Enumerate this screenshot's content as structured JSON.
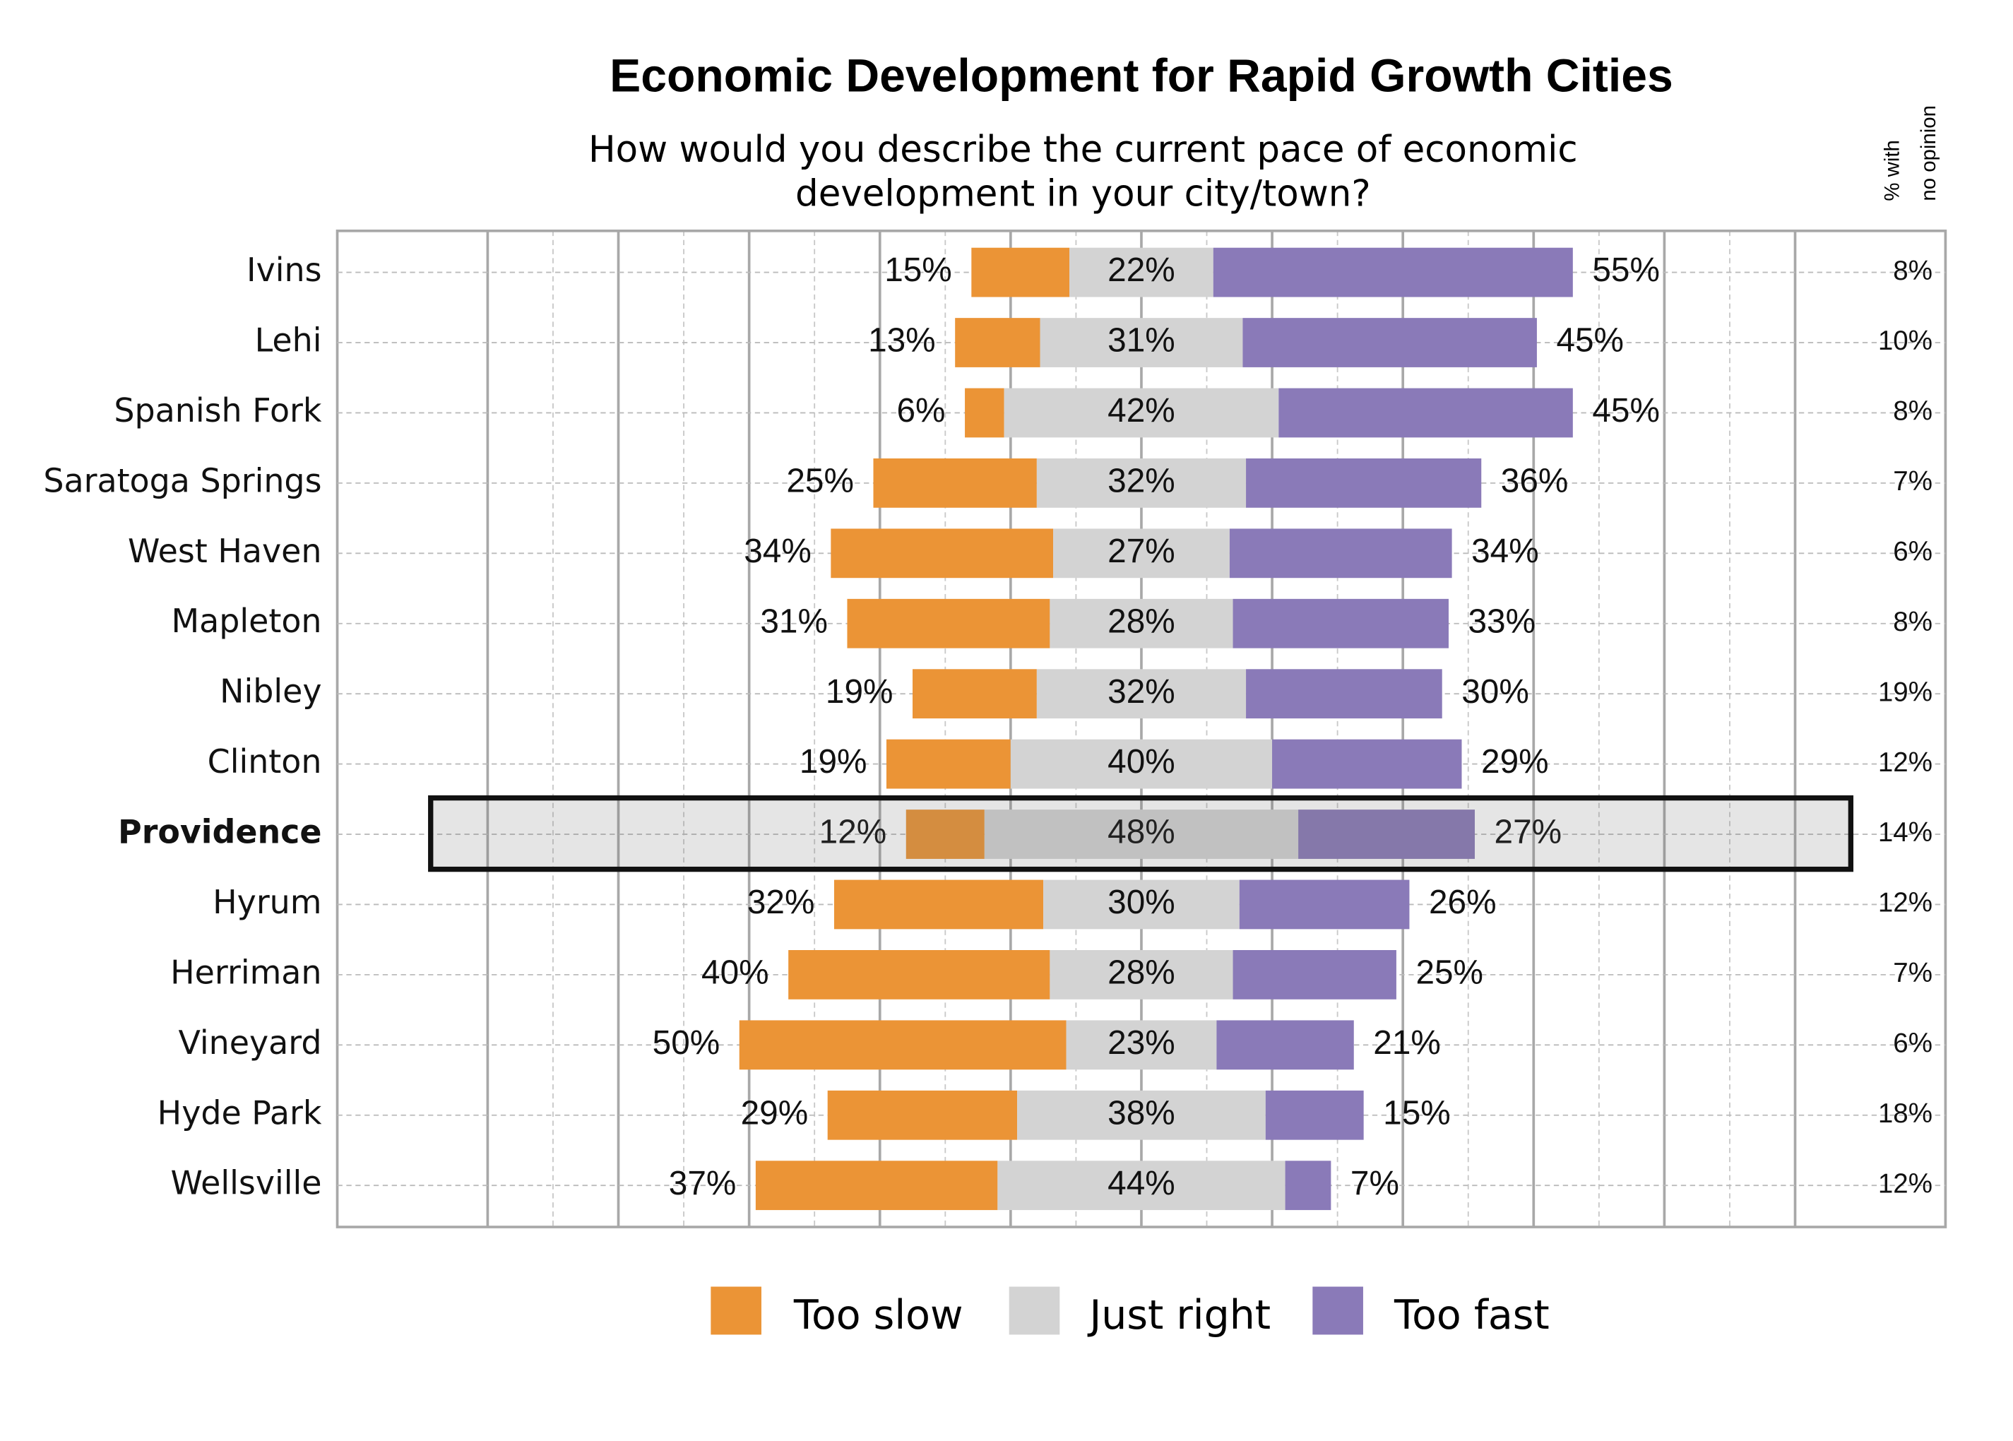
{
  "chart_data": {
    "type": "diverging-bar",
    "title": "Economic Development for Rapid Growth Cities",
    "subtitle": [
      "How would you describe the current pace of economic",
      "development in your city/town?"
    ],
    "categories": [
      "Ivins",
      "Lehi",
      "Spanish Fork",
      "Saratoga Springs",
      "West Haven",
      "Mapleton",
      "Nibley",
      "Clinton",
      "Providence",
      "Hyrum",
      "Herriman",
      "Vineyard",
      "Hyde Park",
      "Wellsville"
    ],
    "highlight_index": 8,
    "series": [
      {
        "name": "Too slow",
        "color": "#eb9436",
        "side": "left",
        "values": [
          15,
          13,
          6,
          25,
          34,
          31,
          19,
          19,
          12,
          32,
          40,
          50,
          29,
          37
        ],
        "value_labels": [
          "15%",
          "13%",
          "6%",
          "25%",
          "34%",
          "31%",
          "19%",
          "19%",
          "12%",
          "32%",
          "40%",
          "50%",
          "29%",
          "37%"
        ]
      },
      {
        "name": "Just right",
        "color": "#d3d3d3",
        "side": "center",
        "values": [
          22,
          31,
          42,
          32,
          27,
          28,
          32,
          40,
          48,
          30,
          28,
          23,
          38,
          44
        ],
        "value_labels": [
          "22%",
          "31%",
          "42%",
          "32%",
          "27%",
          "28%",
          "32%",
          "40%",
          "48%",
          "30%",
          "28%",
          "23%",
          "38%",
          "44%"
        ]
      },
      {
        "name": "Too fast",
        "color": "#8a7ab8",
        "side": "right",
        "values": [
          55,
          45,
          45,
          36,
          34,
          33,
          30,
          29,
          27,
          26,
          25,
          21,
          15,
          7
        ],
        "value_labels": [
          "55%",
          "45%",
          "45%",
          "36%",
          "34%",
          "33%",
          "30%",
          "29%",
          "27%",
          "26%",
          "25%",
          "21%",
          "15%",
          "7%"
        ]
      }
    ],
    "no_opinion": {
      "header": [
        "% with",
        "no opinion"
      ],
      "values": [
        8,
        10,
        8,
        7,
        6,
        8,
        19,
        12,
        14,
        12,
        7,
        6,
        18,
        12
      ],
      "value_labels": [
        "8%",
        "10%",
        "8%",
        "7%",
        "6%",
        "8%",
        "19%",
        "12%",
        "14%",
        "12%",
        "7%",
        "6%",
        "18%",
        "12%"
      ]
    },
    "xlim": [
      -123,
      123
    ],
    "xticks": [
      -100,
      -90,
      -80,
      -70,
      -60,
      -50,
      -40,
      -30,
      -20,
      -10,
      0,
      10,
      20,
      30,
      40,
      50,
      60,
      70,
      80,
      90,
      100
    ],
    "grid": true
  }
}
